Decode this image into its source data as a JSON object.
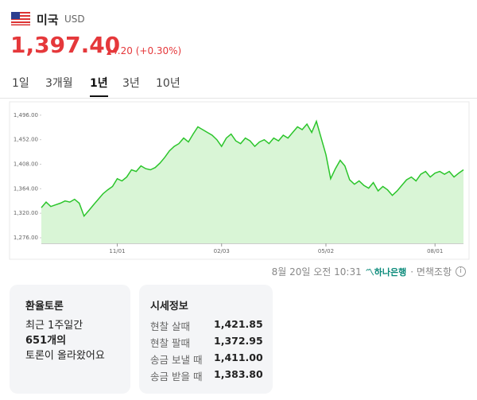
{
  "header": {
    "country": "미국",
    "code": "USD"
  },
  "price": {
    "value": "1,397.40",
    "change": "4.20",
    "change_pct": "(+0.30%)"
  },
  "tabs": {
    "items": [
      "1일",
      "3개월",
      "1년",
      "3년",
      "10년"
    ],
    "active": 2
  },
  "chart_data": {
    "type": "line",
    "color": "#2bc52b",
    "fill": "#d9f5d6",
    "categories": [
      null,
      null,
      null,
      null,
      null,
      null,
      null,
      null,
      null,
      null,
      null,
      null,
      null,
      null,
      null,
      null,
      "11/01",
      null,
      null,
      null,
      null,
      null,
      null,
      null,
      null,
      null,
      null,
      null,
      null,
      null,
      null,
      null,
      null,
      null,
      null,
      null,
      null,
      null,
      "02/03",
      null,
      null,
      null,
      null,
      null,
      null,
      null,
      null,
      null,
      null,
      null,
      null,
      null,
      null,
      null,
      null,
      null,
      null,
      null,
      null,
      null,
      "05/02",
      null,
      null,
      null,
      null,
      null,
      null,
      null,
      null,
      null,
      null,
      null,
      null,
      null,
      null,
      null,
      null,
      null,
      null,
      null,
      null,
      null,
      null,
      "08/01",
      null,
      null,
      null,
      null,
      null,
      null
    ],
    "values": [
      1330,
      1340,
      1332,
      1335,
      1338,
      1342,
      1340,
      1345,
      1338,
      1315,
      1325,
      1335,
      1345,
      1355,
      1362,
      1368,
      1382,
      1378,
      1385,
      1398,
      1395,
      1405,
      1400,
      1398,
      1402,
      1410,
      1420,
      1432,
      1440,
      1445,
      1455,
      1448,
      1462,
      1475,
      1470,
      1465,
      1460,
      1452,
      1440,
      1455,
      1462,
      1450,
      1445,
      1455,
      1450,
      1440,
      1448,
      1452,
      1445,
      1455,
      1450,
      1460,
      1455,
      1465,
      1475,
      1470,
      1480,
      1465,
      1485,
      1455,
      1425,
      1382,
      1400,
      1415,
      1405,
      1380,
      1372,
      1378,
      1370,
      1365,
      1375,
      1360,
      1368,
      1362,
      1352,
      1360,
      1370,
      1380,
      1385,
      1378,
      1390,
      1395,
      1385,
      1392,
      1395,
      1390,
      1395,
      1385,
      1392,
      1398
    ],
    "ylim": [
      1266,
      1520
    ],
    "yticks": [
      {
        "value": 1276,
        "label": "1,276.00"
      },
      {
        "value": 1320,
        "label": "1,320.00"
      },
      {
        "value": 1364,
        "label": "1,364.00"
      },
      {
        "value": 1408,
        "label": "1,408.00"
      },
      {
        "value": 1452,
        "label": "1,452.00"
      },
      {
        "value": 1496,
        "label": "1,496.00"
      }
    ]
  },
  "footer": {
    "timestamp": "8월 20일 오전 10:31",
    "bank": "하나은행",
    "disclaimer": "· 면책조항"
  },
  "discussion": {
    "title": "환율토론",
    "line1": "최근 1주일간",
    "count": "651개의",
    "line3": "토론이 올라왔어요"
  },
  "quotes": {
    "title": "시세정보",
    "rows": [
      [
        "현찰 살때",
        "1,421.85"
      ],
      [
        "현찰 팔때",
        "1,372.95"
      ],
      [
        "송금 보낼 때",
        "1,411.00"
      ],
      [
        "송금 받을 때",
        "1,383.80"
      ]
    ]
  }
}
